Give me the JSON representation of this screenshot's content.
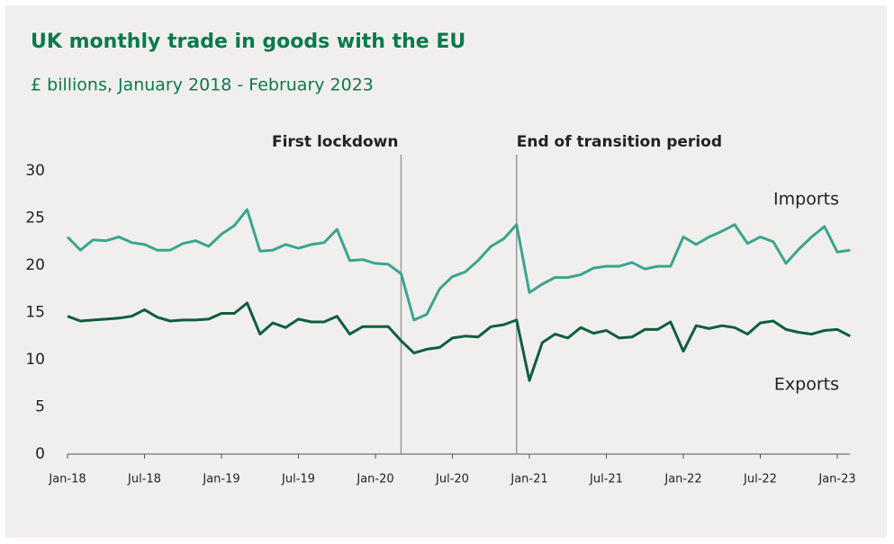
{
  "chart_data": {
    "type": "line",
    "title": "UK monthly trade in goods  with the EU",
    "subtitle": "£ billions, January 2018 - February 2023",
    "categories": [
      "Jan-18",
      null,
      null,
      null,
      null,
      null,
      "Jul-18",
      null,
      null,
      null,
      null,
      null,
      "Jan-19",
      null,
      null,
      null,
      null,
      null,
      "Jul-19",
      null,
      null,
      null,
      null,
      null,
      "Jan-20",
      null,
      null,
      null,
      null,
      null,
      "Jul-20",
      null,
      null,
      null,
      null,
      null,
      "Jan-21",
      null,
      null,
      null,
      null,
      null,
      "Jul-21",
      null,
      null,
      null,
      null,
      null,
      "Jan-22",
      null,
      null,
      null,
      null,
      null,
      "Jul-22",
      null,
      null,
      null,
      null,
      null,
      "Jan-23",
      null
    ],
    "series": [
      {
        "name": "Imports",
        "color": "#3aa58f",
        "values": [
          23.0,
          21.6,
          22.7,
          22.6,
          23.0,
          22.4,
          22.2,
          21.6,
          21.6,
          22.3,
          22.6,
          22.0,
          23.3,
          24.2,
          25.9,
          21.5,
          21.6,
          22.2,
          21.8,
          22.2,
          22.4,
          23.8,
          20.5,
          20.6,
          20.2,
          20.1,
          19.1,
          14.2,
          14.8,
          17.5,
          18.8,
          19.3,
          20.5,
          22.0,
          22.8,
          24.3,
          17.1,
          18.0,
          18.7,
          18.7,
          19.0,
          19.7,
          19.9,
          19.9,
          20.3,
          19.6,
          19.9,
          19.9,
          23.0,
          22.2,
          23.0,
          23.6,
          24.3,
          22.3,
          23.0,
          22.5,
          20.2,
          21.7,
          23.0,
          24.1,
          21.4,
          21.6
        ]
      },
      {
        "name": "Exports",
        "color": "#0f5e3e",
        "values": [
          14.6,
          14.1,
          14.2,
          14.3,
          14.4,
          14.6,
          15.3,
          14.5,
          14.1,
          14.2,
          14.2,
          14.3,
          14.9,
          14.9,
          16.0,
          12.7,
          13.9,
          13.4,
          14.3,
          14.0,
          14.0,
          14.6,
          12.7,
          13.5,
          13.5,
          13.5,
          12.0,
          10.7,
          11.1,
          11.3,
          12.3,
          12.5,
          12.4,
          13.5,
          13.7,
          14.2,
          7.8,
          11.8,
          12.7,
          12.3,
          13.4,
          12.8,
          13.1,
          12.3,
          12.4,
          13.2,
          13.2,
          14.0,
          10.9,
          13.6,
          13.3,
          13.6,
          13.4,
          12.7,
          13.9,
          14.1,
          13.2,
          12.9,
          12.7,
          13.1,
          13.2,
          12.5
        ]
      }
    ],
    "annotations": [
      {
        "text": "First lockdown",
        "x": 26
      },
      {
        "text": "End of transition period",
        "x": 35
      }
    ],
    "ylim": [
      0,
      30
    ],
    "yticks": [
      0,
      5,
      10,
      15,
      20,
      25,
      30
    ],
    "grid": false
  }
}
